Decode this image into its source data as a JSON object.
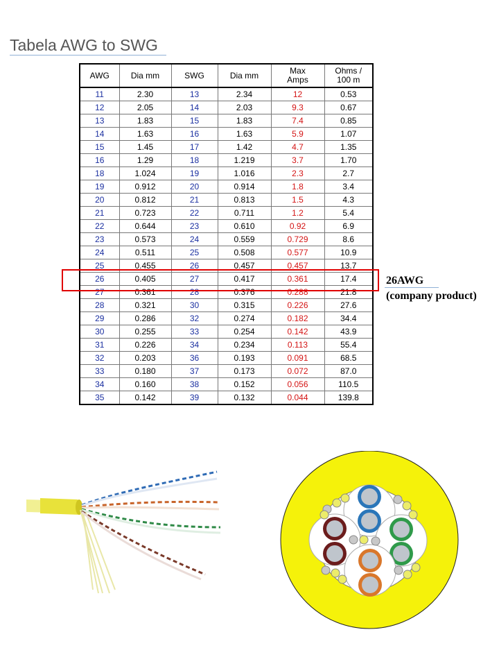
{
  "title": "Tabela AWG to SWG",
  "table": {
    "headers": {
      "awg": "AWG",
      "dia1": "Dia mm",
      "swg": "SWG",
      "dia2": "Dia mm",
      "amps_l1": "Max",
      "amps_l2": "Amps",
      "ohms_l1": "Ohms /",
      "ohms_l2": "100 m"
    },
    "rows": [
      {
        "awg": "11",
        "dia_awg": "2.30",
        "swg": "13",
        "dia_swg": "2.34",
        "amps": "12",
        "ohms": "0.53"
      },
      {
        "awg": "12",
        "dia_awg": "2.05",
        "swg": "14",
        "dia_swg": "2.03",
        "amps": "9.3",
        "ohms": "0.67"
      },
      {
        "awg": "13",
        "dia_awg": "1.83",
        "swg": "15",
        "dia_swg": "1.83",
        "amps": "7.4",
        "ohms": "0.85"
      },
      {
        "awg": "14",
        "dia_awg": "1.63",
        "swg": "16",
        "dia_swg": "1.63",
        "amps": "5.9",
        "ohms": "1.07"
      },
      {
        "awg": "15",
        "dia_awg": "1.45",
        "swg": "17",
        "dia_swg": "1.42",
        "amps": "4.7",
        "ohms": "1.35"
      },
      {
        "awg": "16",
        "dia_awg": "1.29",
        "swg": "18",
        "dia_swg": "1.219",
        "amps": "3.7",
        "ohms": "1.70"
      },
      {
        "awg": "18",
        "dia_awg": "1.024",
        "swg": "19",
        "dia_swg": "1.016",
        "amps": "2.3",
        "ohms": "2.7"
      },
      {
        "awg": "19",
        "dia_awg": "0.912",
        "swg": "20",
        "dia_swg": "0.914",
        "amps": "1.8",
        "ohms": "3.4"
      },
      {
        "awg": "20",
        "dia_awg": "0.812",
        "swg": "21",
        "dia_swg": "0.813",
        "amps": "1.5",
        "ohms": "4.3"
      },
      {
        "awg": "21",
        "dia_awg": "0.723",
        "swg": "22",
        "dia_swg": "0.711",
        "amps": "1.2",
        "ohms": "5.4"
      },
      {
        "awg": "22",
        "dia_awg": "0.644",
        "swg": "23",
        "dia_swg": "0.610",
        "amps": "0.92",
        "ohms": "6.9"
      },
      {
        "awg": "23",
        "dia_awg": "0.573",
        "swg": "24",
        "dia_swg": "0.559",
        "amps": "0.729",
        "ohms": "8.6"
      },
      {
        "awg": "24",
        "dia_awg": "0.511",
        "swg": "25",
        "dia_swg": "0.508",
        "amps": "0.577",
        "ohms": "10.9"
      },
      {
        "awg": "25",
        "dia_awg": "0.455",
        "swg": "26",
        "dia_swg": "0.457",
        "amps": "0.457",
        "ohms": "13.7"
      },
      {
        "awg": "26",
        "dia_awg": "0.405",
        "swg": "27",
        "dia_swg": "0.417",
        "amps": "0.361",
        "ohms": "17.4"
      },
      {
        "awg": "27",
        "dia_awg": "0.361",
        "swg": "28",
        "dia_swg": "0.376",
        "amps": "0.288",
        "ohms": "21.8"
      },
      {
        "awg": "28",
        "dia_awg": "0.321",
        "swg": "30",
        "dia_swg": "0.315",
        "amps": "0.226",
        "ohms": "27.6"
      },
      {
        "awg": "29",
        "dia_awg": "0.286",
        "swg": "32",
        "dia_swg": "0.274",
        "amps": "0.182",
        "ohms": "34.4"
      },
      {
        "awg": "30",
        "dia_awg": "0.255",
        "swg": "33",
        "dia_swg": "0.254",
        "amps": "0.142",
        "ohms": "43.9"
      },
      {
        "awg": "31",
        "dia_awg": "0.226",
        "swg": "34",
        "dia_swg": "0.234",
        "amps": "0.113",
        "ohms": "55.4"
      },
      {
        "awg": "32",
        "dia_awg": "0.203",
        "swg": "36",
        "dia_swg": "0.193",
        "amps": "0.091",
        "ohms": "68.5"
      },
      {
        "awg": "33",
        "dia_awg": "0.180",
        "swg": "37",
        "dia_swg": "0.173",
        "amps": "0.072",
        "ohms": "87.0"
      },
      {
        "awg": "34",
        "dia_awg": "0.160",
        "swg": "38",
        "dia_swg": "0.152",
        "amps": "0.056",
        "ohms": "110.5"
      },
      {
        "awg": "35",
        "dia_awg": "0.142",
        "swg": "39",
        "dia_swg": "0.132",
        "amps": "0.044",
        "ohms": "139.8"
      }
    ]
  },
  "callout": {
    "line1": "26AWG",
    "line2": "(company product)"
  },
  "colors": {
    "gauge_text": "#1a2fa0",
    "amps_text": "#d41414",
    "highlight": "#e00000",
    "jacket_yellow": "#f5f20a"
  }
}
